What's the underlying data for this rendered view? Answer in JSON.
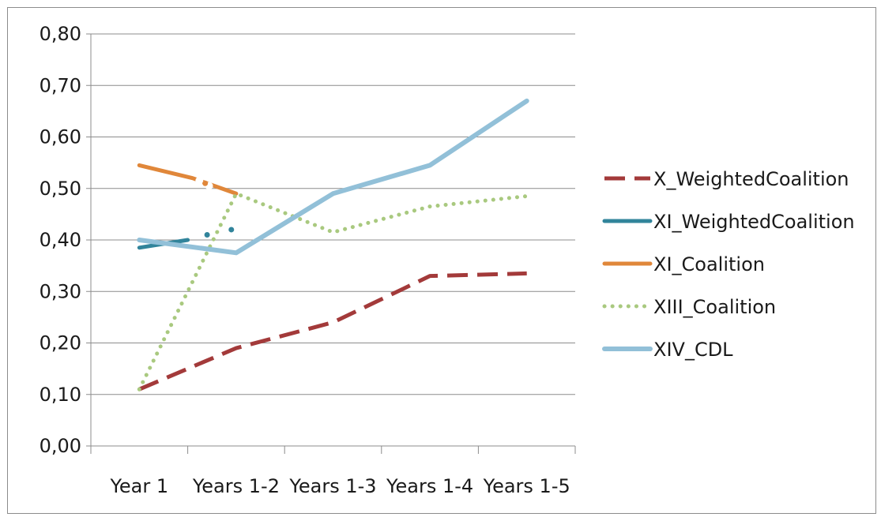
{
  "chart_data": {
    "type": "line",
    "title": "",
    "xlabel": "",
    "ylabel": "",
    "categories": [
      "Year 1",
      "Years 1-2",
      "Years 1-3",
      "Years 1-4",
      "Years 1-5"
    ],
    "ylim": [
      0,
      0.8
    ],
    "y_ticks": [
      "0,00",
      "0,10",
      "0,20",
      "0,30",
      "0,40",
      "0,50",
      "0,60",
      "0,70",
      "0,80"
    ],
    "grid": "horizontal",
    "legend_position": "right",
    "series": [
      {
        "name": "X_WeightedCoalition",
        "color": "#a33a3a",
        "style": "dashed",
        "points": [
          [
            0,
            0.11
          ],
          [
            1,
            0.19
          ],
          [
            2,
            0.24
          ],
          [
            3,
            0.33
          ],
          [
            4,
            0.335
          ]
        ]
      },
      {
        "name": "XI_WeightedCoalition",
        "color": "#31849b",
        "style": "solid",
        "points": [
          [
            0,
            0.385
          ],
          [
            0.5,
            0.4
          ]
        ],
        "dots": [
          [
            0.7,
            0.41
          ],
          [
            0.95,
            0.42
          ]
        ]
      },
      {
        "name": "XI_Coalition",
        "color": "#e0873a",
        "style": "solid",
        "points": [
          [
            0,
            0.545
          ],
          [
            0.55,
            0.52
          ],
          [
            1,
            0.49
          ]
        ],
        "gaps": [
          [
            0.62,
            0.515
          ],
          [
            0.72,
            0.505
          ]
        ],
        "dots": [
          [
            0.68,
            0.51
          ]
        ]
      },
      {
        "name": "XIII_Coalition",
        "color": "#a9c97f",
        "style": "dotted",
        "points": [
          [
            0,
            0.11
          ],
          [
            1,
            0.49
          ],
          [
            2,
            0.415
          ],
          [
            3,
            0.465
          ],
          [
            4,
            0.485
          ]
        ]
      },
      {
        "name": "XIV_CDL",
        "color": "#92c0d8",
        "style": "solid-thick",
        "points": [
          [
            0,
            0.4
          ],
          [
            1,
            0.375
          ],
          [
            2,
            0.49
          ],
          [
            3,
            0.545
          ],
          [
            4,
            0.67
          ]
        ]
      }
    ]
  }
}
